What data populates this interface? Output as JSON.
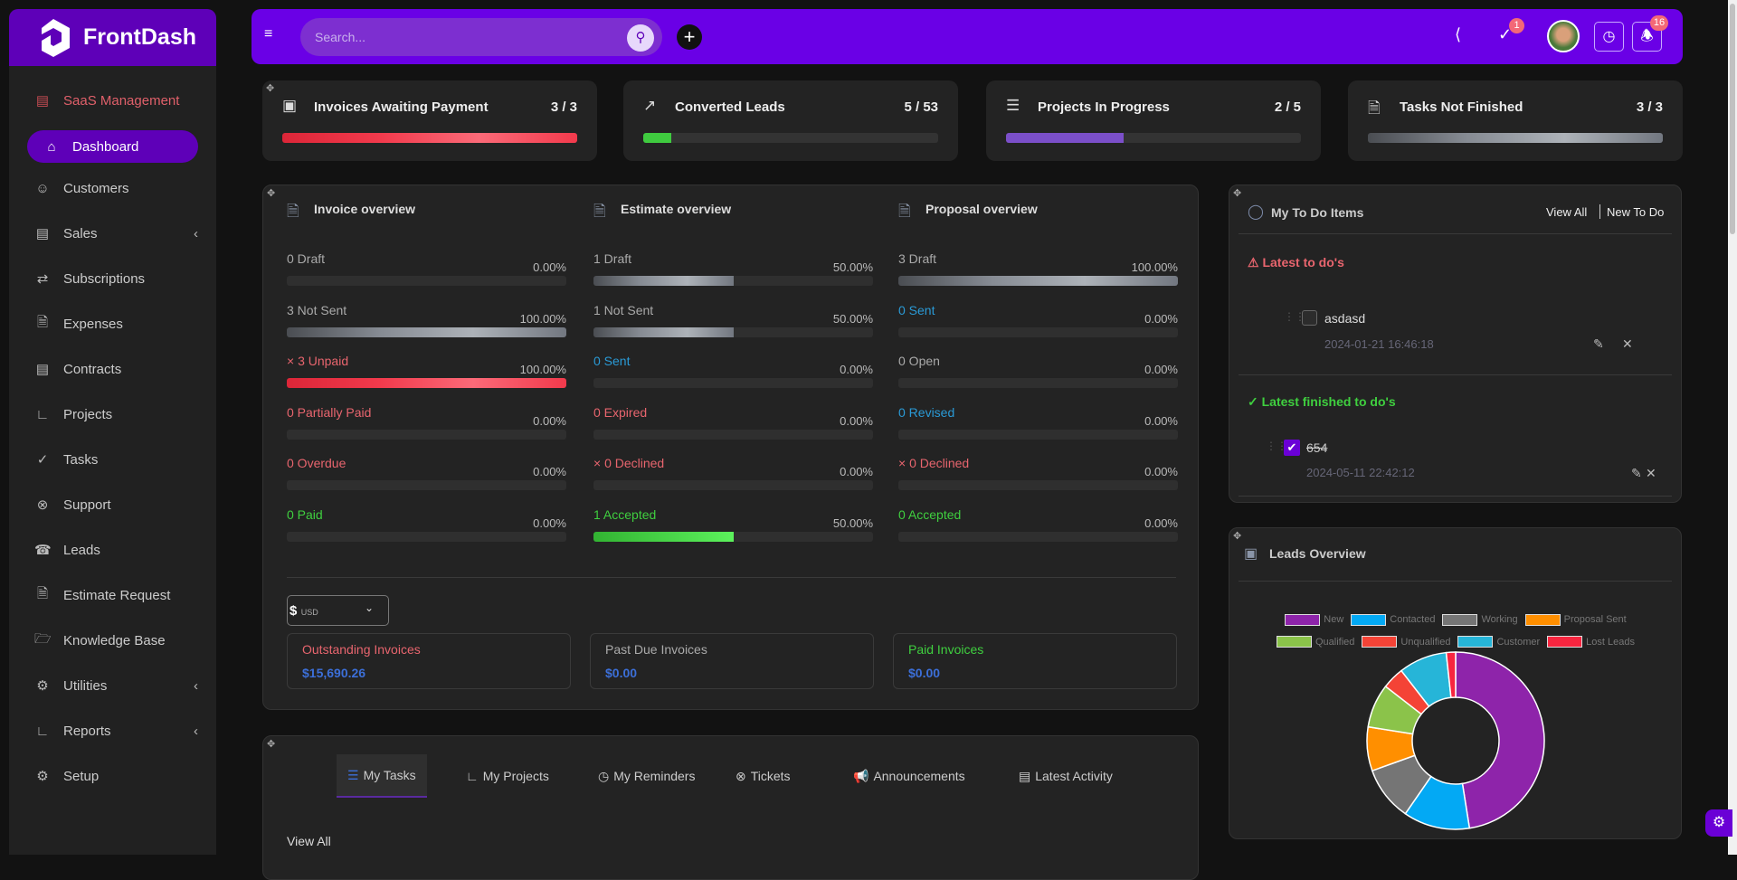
{
  "app": {
    "name": "FrontDash"
  },
  "sidebar": {
    "items": [
      {
        "label": "SaaS Management",
        "icon": "receipt-icon"
      },
      {
        "label": "Dashboard",
        "icon": "home-icon",
        "active": true
      },
      {
        "label": "Customers",
        "icon": "user-icon"
      },
      {
        "label": "Sales",
        "icon": "receipt-icon",
        "chevron": true
      },
      {
        "label": "Subscriptions",
        "icon": "repeat-icon"
      },
      {
        "label": "Expenses",
        "icon": "file-icon"
      },
      {
        "label": "Contracts",
        "icon": "contract-icon"
      },
      {
        "label": "Projects",
        "icon": "chart-icon"
      },
      {
        "label": "Tasks",
        "icon": "check-circle-icon"
      },
      {
        "label": "Support",
        "icon": "lifebuoy-icon"
      },
      {
        "label": "Leads",
        "icon": "tty-icon"
      },
      {
        "label": "Estimate Request",
        "icon": "file-icon"
      },
      {
        "label": "Knowledge Base",
        "icon": "folder-icon"
      },
      {
        "label": "Utilities",
        "icon": "cogs-icon",
        "chevron": true
      },
      {
        "label": "Reports",
        "icon": "chart-icon",
        "chevron": true
      },
      {
        "label": "Setup",
        "icon": "gear-icon"
      }
    ]
  },
  "topbar": {
    "search_placeholder": "Search...",
    "todo_badge": "1",
    "notif_badge": "16"
  },
  "stats": [
    {
      "title": "Invoices Awaiting Payment",
      "value": "3 / 3",
      "progress": 100,
      "color": "red",
      "icon": "money-icon"
    },
    {
      "title": "Converted Leads",
      "value": "5 / 53",
      "progress": 9.4,
      "color": "green",
      "icon": "trend-icon"
    },
    {
      "title": "Projects In Progress",
      "value": "2 / 5",
      "progress": 40,
      "color": "purple",
      "icon": "sliders-icon"
    },
    {
      "title": "Tasks Not Finished",
      "value": "3 / 3",
      "progress": 100,
      "color": "grey",
      "icon": "file-check-icon"
    }
  ],
  "overview": {
    "columns": [
      {
        "title": "Invoice overview",
        "rows": [
          {
            "label": "0 Draft",
            "pct": "0.00%",
            "value": 0,
            "color": "grey",
            "fill": "grey"
          },
          {
            "label": "3 Not Sent",
            "pct": "100.00%",
            "value": 100,
            "color": "grey",
            "fill": "grey"
          },
          {
            "label": "× 3 Unpaid",
            "pct": "100.00%",
            "value": 100,
            "color": "red",
            "fill": "red"
          },
          {
            "label": "0 Partially Paid",
            "pct": "0.00%",
            "value": 0,
            "color": "red",
            "fill": "red"
          },
          {
            "label": "0 Overdue",
            "pct": "0.00%",
            "value": 0,
            "color": "red",
            "fill": "red"
          },
          {
            "label": "0 Paid",
            "pct": "0.00%",
            "value": 0,
            "color": "green",
            "fill": "green"
          }
        ]
      },
      {
        "title": "Estimate overview",
        "rows": [
          {
            "label": "1 Draft",
            "pct": "50.00%",
            "value": 50,
            "color": "grey",
            "fill": "grey"
          },
          {
            "label": "1 Not Sent",
            "pct": "50.00%",
            "value": 50,
            "color": "grey",
            "fill": "grey"
          },
          {
            "label": "0 Sent",
            "pct": "0.00%",
            "value": 0,
            "color": "blue",
            "fill": "grey"
          },
          {
            "label": "0 Expired",
            "pct": "0.00%",
            "value": 0,
            "color": "red",
            "fill": "red"
          },
          {
            "label": "× 0 Declined",
            "pct": "0.00%",
            "value": 0,
            "color": "red",
            "fill": "red"
          },
          {
            "label": "1 Accepted",
            "pct": "50.00%",
            "value": 50,
            "color": "green",
            "fill": "green"
          }
        ]
      },
      {
        "title": "Proposal overview",
        "rows": [
          {
            "label": "3 Draft",
            "pct": "100.00%",
            "value": 100,
            "color": "grey",
            "fill": "grey"
          },
          {
            "label": "0 Sent",
            "pct": "0.00%",
            "value": 0,
            "color": "blue",
            "fill": "grey"
          },
          {
            "label": "0 Open",
            "pct": "0.00%",
            "value": 0,
            "color": "grey",
            "fill": "grey"
          },
          {
            "label": "0 Revised",
            "pct": "0.00%",
            "value": 0,
            "color": "blue",
            "fill": "grey"
          },
          {
            "label": "× 0 Declined",
            "pct": "0.00%",
            "value": 0,
            "color": "red",
            "fill": "red"
          },
          {
            "label": "0 Accepted",
            "pct": "0.00%",
            "value": 0,
            "color": "green",
            "fill": "green"
          }
        ]
      }
    ],
    "currency_symbol": "$",
    "currency_code": "USD",
    "summary": [
      {
        "label": "Outstanding Invoices",
        "amount": "$15,690.26",
        "color": "red"
      },
      {
        "label": "Past Due Invoices",
        "amount": "$0.00",
        "color": "grey"
      },
      {
        "label": "Paid Invoices",
        "amount": "$0.00",
        "color": "green"
      }
    ]
  },
  "todo": {
    "title": "My To Do Items",
    "view_all": "View All",
    "new": "New To Do",
    "latest_title": "Latest to do's",
    "finished_title": "Latest finished to do's",
    "latest": [
      {
        "text": "asdasd",
        "date": "2024-01-21 16:46:18"
      }
    ],
    "finished": [
      {
        "text": "654",
        "date": "2024-05-11 22:42:12"
      }
    ]
  },
  "tabs": {
    "items": [
      "My Tasks",
      "My Projects",
      "My Reminders",
      "Tickets",
      "Announcements",
      "Latest Activity"
    ],
    "view_all": "View All"
  },
  "leads": {
    "title": "Leads Overview"
  },
  "chart_data": {
    "type": "pie",
    "title": "Leads Overview",
    "donut": true,
    "legend": "top",
    "categories": [
      "New",
      "Contacted",
      "Working",
      "Proposal Sent",
      "Qualified",
      "Unqualified",
      "Customer",
      "Lost Leads"
    ],
    "values": [
      47.5,
      12.1,
      9.9,
      8,
      8,
      4,
      8.8,
      1.7
    ],
    "colors": [
      "#8e24aa",
      "#03a9f4",
      "#757575",
      "#ff8f00",
      "#8bc34a",
      "#f44336",
      "#26b5d8",
      "#f7253f"
    ]
  }
}
